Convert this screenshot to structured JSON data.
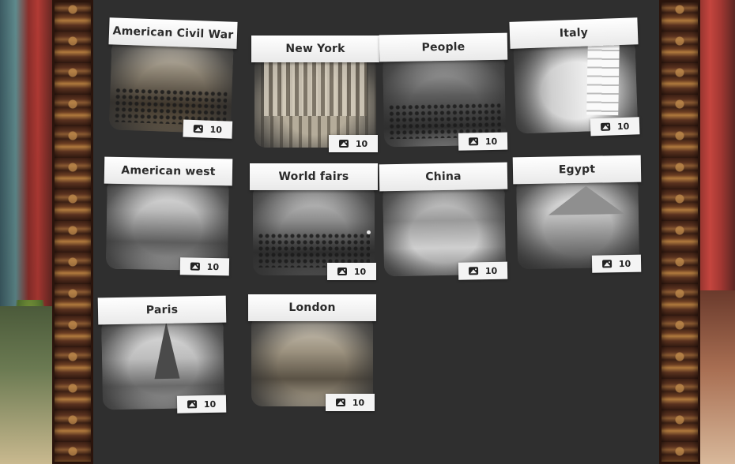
{
  "gallery": {
    "albums": [
      {
        "title": "American Civil War",
        "count": "10",
        "photo_icon": "civil-war-photo"
      },
      {
        "title": "New York",
        "count": "10",
        "photo_icon": "new-york-photo"
      },
      {
        "title": "People",
        "count": "10",
        "photo_icon": "people-photo"
      },
      {
        "title": "Italy",
        "count": "10",
        "photo_icon": "italy-photo"
      },
      {
        "title": "American west",
        "count": "10",
        "photo_icon": "american-west-photo"
      },
      {
        "title": "World fairs",
        "count": "10",
        "photo_icon": "world-fairs-photo"
      },
      {
        "title": "China",
        "count": "10",
        "photo_icon": "china-photo"
      },
      {
        "title": "Egypt",
        "count": "10",
        "photo_icon": "egypt-photo"
      },
      {
        "title": "Paris",
        "count": "10",
        "photo_icon": "paris-photo"
      },
      {
        "title": "London",
        "count": "10",
        "photo_icon": "london-photo"
      }
    ],
    "count_icon": "image-icon"
  },
  "colors": {
    "panel": "#2f2f2f",
    "title_bar": "#ffffff",
    "title_text": "#2b2b2b",
    "badge": "#f4f4f4"
  }
}
